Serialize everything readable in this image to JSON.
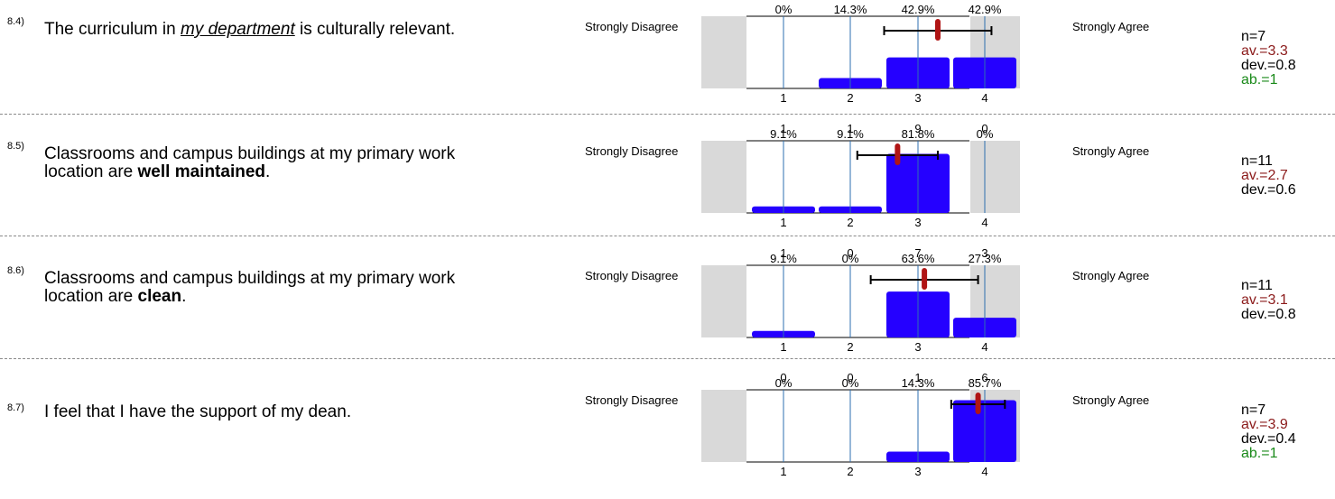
{
  "chart_data": [
    {
      "type": "bar",
      "id": "8.4",
      "question_parts": [
        {
          "text": "The curriculum in ",
          "style": "normal"
        },
        {
          "text": "my department",
          "style": "underline-italic"
        },
        {
          "text": " is culturally relevant.",
          "style": "normal"
        }
      ],
      "left_label": "Strongly Disagree",
      "right_label": "Strongly Agree",
      "categories": [
        "1",
        "2",
        "3",
        "4"
      ],
      "counts": [
        "",
        "",
        "",
        ""
      ],
      "percents": [
        "0%",
        "14.3%",
        "42.9%",
        "42.9%"
      ],
      "values": [
        0,
        14.3,
        42.9,
        42.9
      ],
      "mean": 3.3,
      "dev": 0.8,
      "stats": {
        "n": "n=7",
        "av": "av.=3.3",
        "dev": "dev.=0.8",
        "ab": "ab.=1"
      }
    },
    {
      "type": "bar",
      "id": "8.5",
      "question_parts": [
        {
          "text": "Classrooms and campus buildings at my primary work location are ",
          "style": "normal"
        },
        {
          "text": "well maintained",
          "style": "bold"
        },
        {
          "text": ".",
          "style": "normal"
        }
      ],
      "left_label": "Strongly Disagree",
      "right_label": "Strongly Agree",
      "categories": [
        "1",
        "2",
        "3",
        "4"
      ],
      "counts": [
        "1",
        "1",
        "9",
        "0"
      ],
      "percents": [
        "9.1%",
        "9.1%",
        "81.8%",
        "0%"
      ],
      "values": [
        9.1,
        9.1,
        81.8,
        0
      ],
      "mean": 2.7,
      "dev": 0.6,
      "stats": {
        "n": "n=11",
        "av": "av.=2.7",
        "dev": "dev.=0.6",
        "ab": ""
      }
    },
    {
      "type": "bar",
      "id": "8.6",
      "question_parts": [
        {
          "text": "Classrooms and campus buildings at my primary work location are ",
          "style": "normal"
        },
        {
          "text": "clean",
          "style": "bold"
        },
        {
          "text": ".",
          "style": "normal"
        }
      ],
      "left_label": "Strongly Disagree",
      "right_label": "Strongly Agree",
      "categories": [
        "1",
        "2",
        "3",
        "4"
      ],
      "counts": [
        "1",
        "0",
        "7",
        "3"
      ],
      "percents": [
        "9.1%",
        "0%",
        "63.6%",
        "27.3%"
      ],
      "values": [
        9.1,
        0,
        63.6,
        27.3
      ],
      "mean": 3.1,
      "dev": 0.8,
      "stats": {
        "n": "n=11",
        "av": "av.=3.1",
        "dev": "dev.=0.8",
        "ab": ""
      }
    },
    {
      "type": "bar",
      "id": "8.7",
      "question_parts": [
        {
          "text": "I feel that I have the support of my dean.",
          "style": "normal"
        }
      ],
      "left_label": "Strongly Disagree",
      "right_label": "Strongly Agree",
      "categories": [
        "1",
        "2",
        "3",
        "4"
      ],
      "counts": [
        "0",
        "0",
        "1",
        "6"
      ],
      "percents": [
        "0%",
        "0%",
        "14.3%",
        "85.7%"
      ],
      "values": [
        0,
        0,
        14.3,
        85.7
      ],
      "mean": 3.9,
      "dev": 0.4,
      "stats": {
        "n": "n=7",
        "av": "av.=3.9",
        "dev": "dev.=0.4",
        "ab": "ab.=1"
      }
    }
  ],
  "qnums": [
    "8.4)",
    "8.5)",
    "8.6)",
    "8.7)"
  ],
  "colors": {
    "bar": "#2500ff",
    "mean": "#b01515",
    "grey_panel": "#d9d9d9",
    "gridline": "#2e6fb0",
    "av": "#8b1a1a",
    "ab": "#1a8a1a"
  }
}
